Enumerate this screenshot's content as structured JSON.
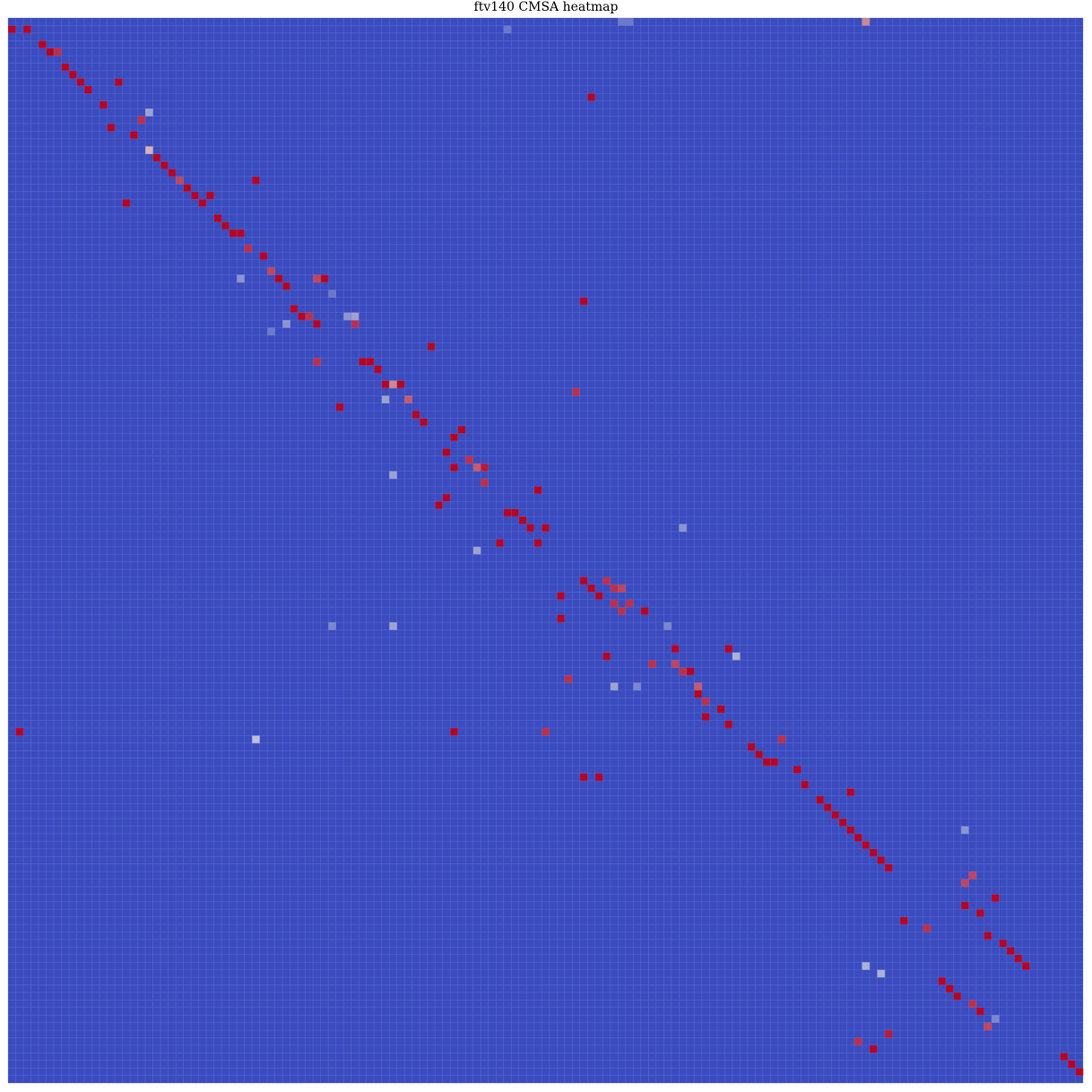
{
  "chart_data": {
    "type": "heatmap",
    "title": "ftv140 CMSA heatmap",
    "size": 141,
    "grid": true,
    "colormap": "coolwarm",
    "background_value": 0,
    "value_range": [
      0,
      1
    ],
    "colors": {
      "low": "#3b4cc0",
      "mid": "#dddddd",
      "high": "#b40426",
      "grid_line": "#6f7fd6"
    },
    "cells": [
      [
        0,
        112,
        0.7
      ],
      [
        1,
        0,
        1
      ],
      [
        1,
        2,
        1
      ],
      [
        3,
        4,
        1
      ],
      [
        4,
        5,
        1
      ],
      [
        4,
        6,
        0.9
      ],
      [
        6,
        7,
        1
      ],
      [
        7,
        8,
        1
      ],
      [
        8,
        9,
        1
      ],
      [
        8,
        14,
        1
      ],
      [
        9,
        10,
        1
      ],
      [
        10,
        76,
        1
      ],
      [
        11,
        12,
        1
      ],
      [
        12,
        18,
        0.3
      ],
      [
        13,
        17,
        0.9
      ],
      [
        14,
        13,
        1
      ],
      [
        15,
        16,
        1
      ],
      [
        17,
        18,
        0.6
      ],
      [
        18,
        19,
        1
      ],
      [
        19,
        20,
        1
      ],
      [
        20,
        21,
        1
      ],
      [
        21,
        22,
        0.85
      ],
      [
        21,
        32,
        1
      ],
      [
        22,
        23,
        1
      ],
      [
        23,
        24,
        1
      ],
      [
        23,
        26,
        1
      ],
      [
        24,
        15,
        1
      ],
      [
        24,
        25,
        1
      ],
      [
        26,
        27,
        1
      ],
      [
        27,
        28,
        1
      ],
      [
        28,
        29,
        1
      ],
      [
        28,
        30,
        1
      ],
      [
        30,
        31,
        0.9
      ],
      [
        31,
        33,
        1
      ],
      [
        33,
        34,
        0.85
      ],
      [
        34,
        35,
        1
      ],
      [
        34,
        40,
        0.85
      ],
      [
        34,
        41,
        1
      ],
      [
        35,
        36,
        1
      ],
      [
        37,
        75,
        1
      ],
      [
        38,
        37,
        1
      ],
      [
        39,
        38,
        1
      ],
      [
        39,
        39,
        0.9
      ],
      [
        40,
        40,
        1
      ],
      [
        40,
        45,
        0.9
      ],
      [
        41,
        34,
        0.15
      ],
      [
        43,
        55,
        1
      ],
      [
        45,
        40,
        0.9
      ],
      [
        45,
        46,
        1
      ],
      [
        45,
        47,
        1
      ],
      [
        46,
        48,
        1
      ],
      [
        48,
        49,
        1
      ],
      [
        48,
        50,
        0.7
      ],
      [
        48,
        51,
        1
      ],
      [
        49,
        74,
        0.9
      ],
      [
        50,
        49,
        0.3
      ],
      [
        50,
        52,
        0.8
      ],
      [
        51,
        43,
        1
      ],
      [
        52,
        53,
        1
      ],
      [
        53,
        54,
        1
      ],
      [
        54,
        59,
        1
      ],
      [
        55,
        58,
        1
      ],
      [
        57,
        57,
        1
      ],
      [
        58,
        60,
        0.9
      ],
      [
        59,
        58,
        1
      ],
      [
        59,
        61,
        0.8
      ],
      [
        59,
        62,
        0.95
      ],
      [
        60,
        50,
        0.3
      ],
      [
        61,
        62,
        0.9
      ],
      [
        62,
        69,
        1
      ],
      [
        63,
        57,
        1
      ],
      [
        64,
        56,
        1
      ],
      [
        65,
        65,
        1
      ],
      [
        65,
        66,
        1
      ],
      [
        66,
        67,
        1
      ],
      [
        67,
        68,
        1
      ],
      [
        67,
        70,
        1
      ],
      [
        69,
        64,
        1
      ],
      [
        69,
        69,
        1
      ],
      [
        70,
        61,
        0.3
      ],
      [
        74,
        75,
        1
      ],
      [
        74,
        78,
        0.9
      ],
      [
        75,
        76,
        1
      ],
      [
        75,
        79,
        0.9
      ],
      [
        75,
        80,
        0.85
      ],
      [
        76,
        72,
        1
      ],
      [
        76,
        77,
        1
      ],
      [
        77,
        79,
        0.9
      ],
      [
        77,
        81,
        0.9
      ],
      [
        78,
        80,
        0.9
      ],
      [
        78,
        83,
        1
      ],
      [
        79,
        72,
        1
      ],
      [
        80,
        42,
        0.2
      ],
      [
        80,
        50,
        0.3
      ],
      [
        83,
        87,
        1
      ],
      [
        83,
        94,
        1
      ],
      [
        84,
        78,
        1
      ],
      [
        85,
        87,
        0.85
      ],
      [
        85,
        84,
        0.9
      ],
      [
        86,
        88,
        0.9
      ],
      [
        86,
        89,
        1
      ],
      [
        87,
        73,
        0.9
      ],
      [
        88,
        90,
        0.8
      ],
      [
        88,
        79,
        0.3
      ],
      [
        89,
        90,
        1
      ],
      [
        90,
        91,
        0.9
      ],
      [
        91,
        93,
        1
      ],
      [
        92,
        91,
        1
      ],
      [
        93,
        94,
        1
      ],
      [
        94,
        1,
        1
      ],
      [
        94,
        58,
        1
      ],
      [
        94,
        70,
        0.9
      ],
      [
        95,
        32,
        0.4
      ],
      [
        95,
        101,
        0.9
      ],
      [
        96,
        97,
        1
      ],
      [
        97,
        98,
        1
      ],
      [
        98,
        99,
        1
      ],
      [
        98,
        100,
        1
      ],
      [
        99,
        103,
        1
      ],
      [
        100,
        75,
        1
      ],
      [
        100,
        77,
        1
      ],
      [
        101,
        104,
        1
      ],
      [
        102,
        110,
        1
      ],
      [
        103,
        106,
        1
      ],
      [
        104,
        107,
        1
      ],
      [
        105,
        108,
        1
      ],
      [
        106,
        109,
        1
      ],
      [
        107,
        110,
        1
      ],
      [
        108,
        111,
        1
      ],
      [
        109,
        112,
        1
      ],
      [
        110,
        113,
        1
      ],
      [
        111,
        114,
        1
      ],
      [
        112,
        115,
        1
      ],
      [
        113,
        126,
        0.85
      ],
      [
        114,
        125,
        0.85
      ],
      [
        116,
        129,
        1
      ],
      [
        117,
        125,
        1
      ],
      [
        118,
        127,
        1
      ],
      [
        119,
        117,
        1
      ],
      [
        120,
        120,
        0.9
      ],
      [
        121,
        128,
        1
      ],
      [
        122,
        130,
        1
      ],
      [
        123,
        131,
        1
      ],
      [
        124,
        132,
        1
      ],
      [
        125,
        133,
        1
      ],
      [
        127,
        122,
        1
      ],
      [
        128,
        123,
        1
      ],
      [
        129,
        124,
        1
      ],
      [
        130,
        126,
        0.9
      ],
      [
        131,
        127,
        1
      ],
      [
        132,
        129,
        0.2
      ],
      [
        133,
        128,
        0.85
      ],
      [
        134,
        115,
        0.95
      ],
      [
        135,
        111,
        0.9
      ],
      [
        136,
        113,
        1
      ],
      [
        137,
        138,
        1
      ],
      [
        138,
        139,
        1
      ],
      [
        139,
        140,
        1
      ],
      [
        125,
        112,
        0.35
      ],
      [
        126,
        114,
        0.35
      ],
      [
        107,
        125,
        0.25
      ],
      [
        67,
        88,
        0.25
      ],
      [
        80,
        86,
        0.2
      ],
      [
        88,
        82,
        0.2
      ],
      [
        84,
        95,
        0.35
      ],
      [
        1,
        65,
        0.15
      ],
      [
        0,
        81,
        0.15
      ],
      [
        0,
        80,
        0.15
      ],
      [
        40,
        36,
        0.25
      ],
      [
        39,
        45,
        0.3
      ],
      [
        39,
        44,
        0.25
      ],
      [
        34,
        30,
        0.25
      ],
      [
        36,
        42,
        0.15
      ]
    ]
  }
}
